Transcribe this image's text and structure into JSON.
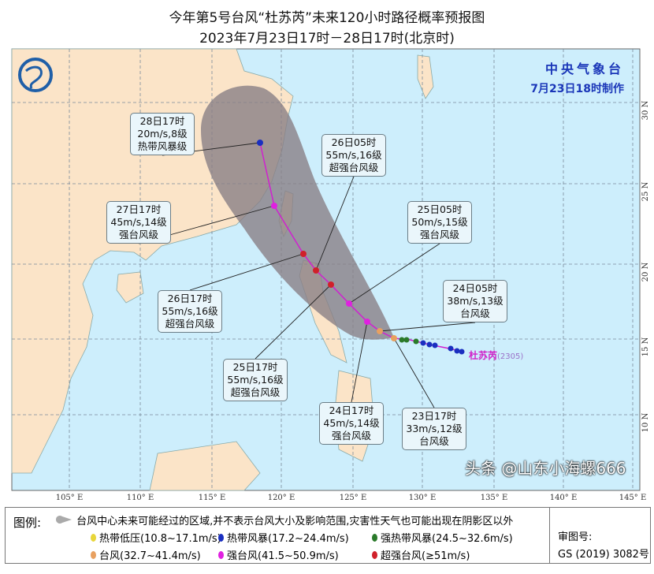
{
  "title": {
    "line1": "今年第5号台风“杜苏芮”未来120小时路径概率预报图",
    "line2": "2023年7月23日17时－28日17时(北京时)"
  },
  "agency": {
    "name": "中央气象台",
    "issued": "7月23日18时制作"
  },
  "typhoon": {
    "name": "杜苏芮",
    "code": "(2305)"
  },
  "axes": {
    "longitude_labels": [
      "105° E",
      "110° E",
      "115° E",
      "120° E",
      "125° E",
      "130° E",
      "135° E",
      "140° E",
      "145° E"
    ],
    "latitude_labels": [
      "30 N",
      "25 N",
      "20 N",
      "15 N",
      "10 N"
    ]
  },
  "forecast_points": [
    {
      "time": "23日17时",
      "speed": "33m/s,12级",
      "level": "台风级",
      "color": "#e8a060"
    },
    {
      "time": "24日05时",
      "speed": "38m/s,13级",
      "level": "台风级",
      "color": "#e8a060"
    },
    {
      "time": "24日17时",
      "speed": "45m/s,14级",
      "level": "强台风级",
      "color": "#e020e0"
    },
    {
      "time": "25日05时",
      "speed": "50m/s,15级",
      "level": "强台风级",
      "color": "#e020e0"
    },
    {
      "time": "25日17时",
      "speed": "55m/s,16级",
      "level": "超强台风级",
      "color": "#d0202a"
    },
    {
      "time": "26日05时",
      "speed": "55m/s,16级",
      "level": "超强台风级",
      "color": "#d0202a"
    },
    {
      "time": "26日17时",
      "speed": "55m/s,16级",
      "level": "超强台风级",
      "color": "#d0202a"
    },
    {
      "time": "27日17时",
      "speed": "45m/s,14级",
      "level": "强台风级",
      "color": "#e020e0"
    },
    {
      "time": "28日17时",
      "speed": "20m/s,8级",
      "level": "热带风暴级",
      "color": "#1a2fc0"
    }
  ],
  "legend": {
    "heading": "图例:",
    "cone_description": "台风中心未来可能经过的区域,并不表示台风大小及影响范围,灾害性天气也可能出现在阴影区以外",
    "items": [
      {
        "label": "热带低压(10.8~17.1m/s)",
        "color": "#e8d63a"
      },
      {
        "label": "热带风暴(17.2~24.4m/s)",
        "color": "#1a2fc0"
      },
      {
        "label": "强热带风暴(24.5~32.6m/s)",
        "color": "#2a7a2a"
      },
      {
        "label": "台风(32.7~41.4m/s)",
        "color": "#e8a060"
      },
      {
        "label": "强台风(41.5~50.9m/s)",
        "color": "#e020e0"
      },
      {
        "label": "超强台风(≥51m/s)",
        "color": "#d0202a"
      }
    ],
    "review_label": "审图号:",
    "review_number": "GS (2019) 3082号"
  },
  "watermark": "头条 @山东小海螺666",
  "colors": {
    "ocean": "#cdeefc",
    "land": "#fbe4c8",
    "cone": "#8a7f86",
    "track": "#d020d0"
  }
}
